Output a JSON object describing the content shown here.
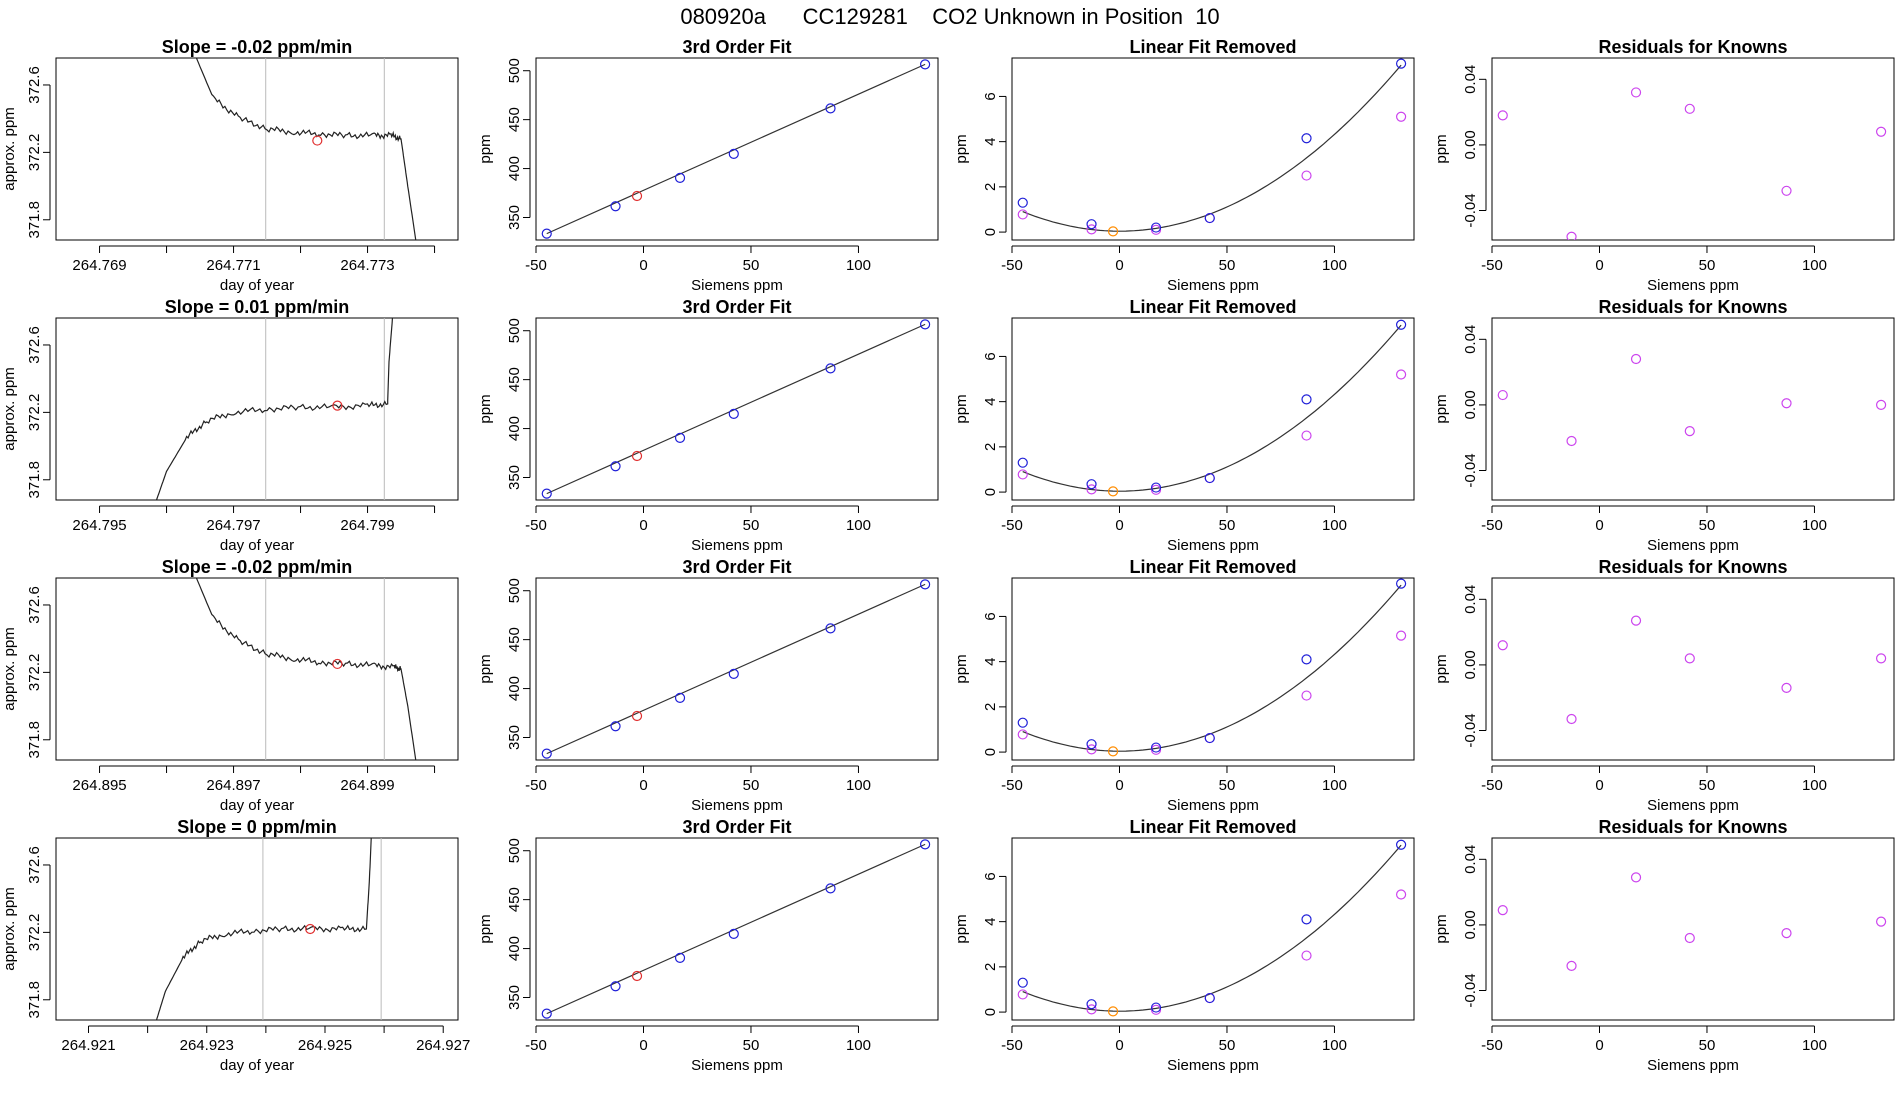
{
  "main_title": "080920a      CC129281    CO2 Unknown in Position  10",
  "colors": {
    "known": "#1f1fd8",
    "unknown": "#e03030",
    "zero": "#ff8c00",
    "magenta": "#cc44ee",
    "line": "#333333",
    "vline": "#bbbbbb"
  },
  "chart_data": [
    {
      "type": "line",
      "row": 0,
      "title": "Slope =  -0.02  ppm/min",
      "xlabel": "day of year",
      "ylabel": "approx. ppm",
      "xlim": [
        264.76835,
        264.77435
      ],
      "ylim": [
        371.68,
        372.76
      ],
      "xticks": [
        264.769,
        264.771,
        264.773
      ],
      "xtick_labels": [
        "264.769",
        "264.771",
        "264.773"
      ],
      "xtick_minor": [
        264.77,
        264.772,
        264.774
      ],
      "yticks": [
        371.8,
        372.2,
        372.6
      ],
      "ytick_labels": [
        "371.8",
        "372.2",
        "372.6"
      ],
      "vlines": [
        264.77148,
        264.77325
      ],
      "trace": {
        "x": [
          264.77035,
          264.7707,
          264.7711,
          264.7715,
          264.7719,
          264.7723,
          264.7727,
          264.7731,
          264.77335,
          264.7735,
          264.7736,
          264.77375
        ],
        "y": [
          372.85,
          372.52,
          372.4,
          372.34,
          372.32,
          372.31,
          372.3,
          372.3,
          372.3,
          372.28,
          372.0,
          371.6
        ]
      },
      "marker": {
        "x": 264.77225,
        "y": 372.27
      }
    },
    {
      "type": "scatter",
      "row": 0,
      "title": "3rd Order Fit",
      "xlabel": "Siemens ppm",
      "ylabel": "ppm",
      "xlim": [
        -50,
        137
      ],
      "ylim": [
        327,
        513
      ],
      "xticks": [
        -50,
        0,
        50,
        100
      ],
      "xtick_labels": [
        "-50",
        "0",
        "50",
        "100"
      ],
      "yticks": [
        350,
        400,
        450,
        500
      ],
      "ytick_labels": [
        "350",
        "400",
        "450",
        "500"
      ],
      "fit": {
        "x": [
          -45,
          131
        ],
        "y": [
          333.5,
          506.5
        ]
      },
      "known": {
        "x": [
          -45,
          -13,
          17,
          42,
          87,
          131
        ],
        "y": [
          333.5,
          361.5,
          390.5,
          415,
          461.5,
          506.5
        ]
      },
      "unknown": {
        "x": [
          -3
        ],
        "y": [
          372
        ]
      }
    },
    {
      "type": "scatter",
      "row": 0,
      "title": "Linear Fit Removed",
      "xlabel": "Siemens ppm",
      "ylabel": "ppm",
      "xlim": [
        -50,
        137
      ],
      "ylim": [
        -0.35,
        7.7
      ],
      "xticks": [
        -50,
        0,
        50,
        100
      ],
      "xtick_labels": [
        "-50",
        "0",
        "50",
        "100"
      ],
      "yticks": [
        0,
        2,
        4,
        6
      ],
      "ytick_labels": [
        "0",
        "2",
        "4",
        "6"
      ],
      "curve": {
        "c0": 0.04,
        "c1": 0.0,
        "c2": 0.000428
      },
      "known": {
        "x": [
          -45,
          -13,
          17,
          42,
          87,
          131
        ],
        "y": [
          1.3,
          0.35,
          0.2,
          0.62,
          4.15,
          7.45
        ]
      },
      "magenta": {
        "x": [
          -45,
          -13,
          17,
          42,
          87,
          131
        ],
        "y": [
          0.78,
          0.12,
          0.1,
          0.62,
          2.5,
          5.1
        ]
      },
      "zero": {
        "x": [
          -3
        ],
        "y": [
          0.03
        ]
      }
    },
    {
      "type": "scatter",
      "row": 0,
      "title": "Residuals for Knowns",
      "xlabel": "Siemens ppm",
      "ylabel": "ppm",
      "xlim": [
        -50,
        137
      ],
      "ylim": [
        -0.058,
        0.053
      ],
      "xticks": [
        -50,
        0,
        50,
        100
      ],
      "xtick_labels": [
        "-50",
        "0",
        "50",
        "100"
      ],
      "yticks": [
        -0.04,
        0.0,
        0.04
      ],
      "ytick_labels": [
        "-0.04",
        "0.00",
        "0.04"
      ],
      "magenta": {
        "x": [
          -45,
          -13,
          17,
          42,
          87,
          131
        ],
        "y": [
          0.018,
          -0.056,
          0.032,
          0.022,
          -0.028,
          0.008
        ]
      }
    },
    {
      "type": "line",
      "row": 1,
      "title": "Slope =  0.01  ppm/min",
      "xlabel": "day of year",
      "ylabel": "approx. ppm",
      "xlim": [
        264.79435,
        264.80035
      ],
      "ylim": [
        371.68,
        372.76
      ],
      "xticks": [
        264.795,
        264.797,
        264.799
      ],
      "xtick_labels": [
        "264.795",
        "264.797",
        "264.799"
      ],
      "xtick_minor": [
        264.796,
        264.798,
        264.8
      ],
      "yticks": [
        371.8,
        372.2,
        372.6
      ],
      "ytick_labels": [
        "371.8",
        "372.2",
        "372.6"
      ],
      "vlines": [
        264.79748,
        264.79925
      ],
      "trace": {
        "x": [
          264.79585,
          264.796,
          264.7963,
          264.7966,
          264.797,
          264.7975,
          264.798,
          264.7985,
          264.799,
          264.7993,
          264.79932,
          264.7994
        ],
        "y": [
          371.68,
          371.85,
          372.05,
          372.15,
          372.2,
          372.22,
          372.23,
          372.23,
          372.24,
          372.25,
          372.5,
          372.9
        ]
      },
      "marker": {
        "x": 264.79855,
        "y": 372.24
      }
    },
    {
      "type": "scatter",
      "row": 1,
      "title": "3rd Order Fit",
      "xlabel": "Siemens ppm",
      "ylabel": "ppm",
      "xlim": [
        -50,
        137
      ],
      "ylim": [
        327,
        513
      ],
      "xticks": [
        -50,
        0,
        50,
        100
      ],
      "xtick_labels": [
        "-50",
        "0",
        "50",
        "100"
      ],
      "yticks": [
        350,
        400,
        450,
        500
      ],
      "ytick_labels": [
        "350",
        "400",
        "450",
        "500"
      ],
      "fit": {
        "x": [
          -45,
          131
        ],
        "y": [
          333.5,
          506.5
        ]
      },
      "known": {
        "x": [
          -45,
          -13,
          17,
          42,
          87,
          131
        ],
        "y": [
          333.5,
          361.5,
          390.5,
          415,
          461.5,
          506.5
        ]
      },
      "unknown": {
        "x": [
          -3
        ],
        "y": [
          372
        ]
      }
    },
    {
      "type": "scatter",
      "row": 1,
      "title": "Linear Fit Removed",
      "xlabel": "Siemens ppm",
      "ylabel": "ppm",
      "xlim": [
        -50,
        137
      ],
      "ylim": [
        -0.35,
        7.7
      ],
      "xticks": [
        -50,
        0,
        50,
        100
      ],
      "xtick_labels": [
        "-50",
        "0",
        "50",
        "100"
      ],
      "yticks": [
        0,
        2,
        4,
        6
      ],
      "ytick_labels": [
        "0",
        "2",
        "4",
        "6"
      ],
      "curve": {
        "c0": 0.04,
        "c1": 0.0,
        "c2": 0.000428
      },
      "known": {
        "x": [
          -45,
          -13,
          17,
          42,
          87,
          131
        ],
        "y": [
          1.3,
          0.35,
          0.2,
          0.62,
          4.1,
          7.4
        ]
      },
      "magenta": {
        "x": [
          -45,
          -13,
          17,
          42,
          87,
          131
        ],
        "y": [
          0.78,
          0.12,
          0.1,
          0.62,
          2.5,
          5.2
        ]
      },
      "zero": {
        "x": [
          -3
        ],
        "y": [
          0.03
        ]
      }
    },
    {
      "type": "scatter",
      "row": 1,
      "title": "Residuals for Knowns",
      "xlabel": "Siemens ppm",
      "ylabel": "ppm",
      "xlim": [
        -50,
        137
      ],
      "ylim": [
        -0.058,
        0.053
      ],
      "xticks": [
        -50,
        0,
        50,
        100
      ],
      "xtick_labels": [
        "-50",
        "0",
        "50",
        "100"
      ],
      "yticks": [
        -0.04,
        0.0,
        0.04
      ],
      "ytick_labels": [
        "-0.04",
        "0.00",
        "0.04"
      ],
      "magenta": {
        "x": [
          -45,
          -13,
          17,
          42,
          87,
          131
        ],
        "y": [
          0.006,
          -0.022,
          0.028,
          -0.016,
          0.001,
          0.0
        ]
      }
    },
    {
      "type": "line",
      "row": 2,
      "title": "Slope =  -0.02  ppm/min",
      "xlabel": "day of year",
      "ylabel": "approx. ppm",
      "xlim": [
        264.89435,
        264.90035
      ],
      "ylim": [
        371.68,
        372.76
      ],
      "xticks": [
        264.895,
        264.897,
        264.899
      ],
      "xtick_labels": [
        "264.895",
        "264.897",
        "264.899"
      ],
      "xtick_minor": [
        264.896,
        264.898,
        264.9
      ],
      "yticks": [
        371.8,
        372.2,
        372.6
      ],
      "ytick_labels": [
        "371.8",
        "372.2",
        "372.6"
      ],
      "vlines": [
        264.89748,
        264.89925
      ],
      "trace": {
        "x": [
          264.89635,
          264.8967,
          264.8971,
          264.8975,
          264.8979,
          264.8983,
          264.8987,
          264.8991,
          264.8994,
          264.8995,
          264.8996,
          264.89975
        ],
        "y": [
          372.85,
          372.52,
          372.38,
          372.31,
          372.28,
          372.26,
          372.25,
          372.24,
          372.23,
          372.22,
          372.0,
          371.6
        ]
      },
      "marker": {
        "x": 264.89855,
        "y": 372.25
      }
    },
    {
      "type": "scatter",
      "row": 2,
      "title": "3rd Order Fit",
      "xlabel": "Siemens ppm",
      "ylabel": "ppm",
      "xlim": [
        -50,
        137
      ],
      "ylim": [
        327,
        513
      ],
      "xticks": [
        -50,
        0,
        50,
        100
      ],
      "xtick_labels": [
        "-50",
        "0",
        "50",
        "100"
      ],
      "yticks": [
        350,
        400,
        450,
        500
      ],
      "ytick_labels": [
        "350",
        "400",
        "450",
        "500"
      ],
      "fit": {
        "x": [
          -45,
          131
        ],
        "y": [
          333.5,
          506.5
        ]
      },
      "known": {
        "x": [
          -45,
          -13,
          17,
          42,
          87,
          131
        ],
        "y": [
          333.5,
          361.5,
          390.5,
          415,
          461.5,
          506.5
        ]
      },
      "unknown": {
        "x": [
          -3
        ],
        "y": [
          372
        ]
      }
    },
    {
      "type": "scatter",
      "row": 2,
      "title": "Linear Fit Removed",
      "xlabel": "Siemens ppm",
      "ylabel": "ppm",
      "xlim": [
        -50,
        137
      ],
      "ylim": [
        -0.35,
        7.7
      ],
      "xticks": [
        -50,
        0,
        50,
        100
      ],
      "xtick_labels": [
        "-50",
        "0",
        "50",
        "100"
      ],
      "yticks": [
        0,
        2,
        4,
        6
      ],
      "ytick_labels": [
        "0",
        "2",
        "4",
        "6"
      ],
      "curve": {
        "c0": 0.04,
        "c1": 0.0,
        "c2": 0.000428
      },
      "known": {
        "x": [
          -45,
          -13,
          17,
          42,
          87,
          131
        ],
        "y": [
          1.3,
          0.35,
          0.2,
          0.62,
          4.1,
          7.45
        ]
      },
      "magenta": {
        "x": [
          -45,
          -13,
          17,
          42,
          87,
          131
        ],
        "y": [
          0.78,
          0.12,
          0.1,
          0.62,
          2.5,
          5.15
        ]
      },
      "zero": {
        "x": [
          -3
        ],
        "y": [
          0.03
        ]
      }
    },
    {
      "type": "scatter",
      "row": 2,
      "title": "Residuals for Knowns",
      "xlabel": "Siemens ppm",
      "ylabel": "ppm",
      "xlim": [
        -50,
        137
      ],
      "ylim": [
        -0.058,
        0.053
      ],
      "xticks": [
        -50,
        0,
        50,
        100
      ],
      "xtick_labels": [
        "-50",
        "0",
        "50",
        "100"
      ],
      "yticks": [
        -0.04,
        0.0,
        0.04
      ],
      "ytick_labels": [
        "-0.04",
        "0.00",
        "0.04"
      ],
      "magenta": {
        "x": [
          -45,
          -13,
          17,
          42,
          87,
          131
        ],
        "y": [
          0.012,
          -0.033,
          0.027,
          0.004,
          -0.014,
          0.004
        ]
      }
    },
    {
      "type": "line",
      "row": 3,
      "title": "Slope =  0  ppm/min",
      "xlabel": "day of year",
      "ylabel": "approx. ppm",
      "xlim": [
        264.92045,
        264.92725
      ],
      "ylim": [
        371.68,
        372.76
      ],
      "xticks": [
        264.921,
        264.923,
        264.925,
        264.927
      ],
      "xtick_labels": [
        "264.921",
        "264.923",
        "264.925",
        "264.927"
      ],
      "xtick_minor": [
        264.922,
        264.924,
        264.926
      ],
      "yticks": [
        371.8,
        372.2,
        372.6
      ],
      "ytick_labels": [
        "371.8",
        "372.2",
        "372.6"
      ],
      "vlines": [
        264.92395,
        264.92595
      ],
      "trace": {
        "x": [
          264.92215,
          264.9223,
          264.9226,
          264.9229,
          264.9233,
          264.9238,
          264.9243,
          264.9248,
          264.9253,
          264.9257,
          264.92575,
          264.9258
        ],
        "y": [
          371.68,
          371.85,
          372.05,
          372.15,
          372.19,
          372.21,
          372.22,
          372.22,
          372.22,
          372.22,
          372.5,
          372.9
        ]
      },
      "marker": {
        "x": 264.92475,
        "y": 372.22
      }
    },
    {
      "type": "scatter",
      "row": 3,
      "title": "3rd Order Fit",
      "xlabel": "Siemens ppm",
      "ylabel": "ppm",
      "xlim": [
        -50,
        137
      ],
      "ylim": [
        327,
        513
      ],
      "xticks": [
        -50,
        0,
        50,
        100
      ],
      "xtick_labels": [
        "-50",
        "0",
        "50",
        "100"
      ],
      "yticks": [
        350,
        400,
        450,
        500
      ],
      "ytick_labels": [
        "350",
        "400",
        "450",
        "500"
      ],
      "fit": {
        "x": [
          -45,
          131
        ],
        "y": [
          333.5,
          506.5
        ]
      },
      "known": {
        "x": [
          -45,
          -13,
          17,
          42,
          87,
          131
        ],
        "y": [
          333.5,
          361.5,
          390.5,
          415,
          461.5,
          506.5
        ]
      },
      "unknown": {
        "x": [
          -3
        ],
        "y": [
          372
        ]
      }
    },
    {
      "type": "scatter",
      "row": 3,
      "title": "Linear Fit Removed",
      "xlabel": "Siemens ppm",
      "ylabel": "ppm",
      "xlim": [
        -50,
        137
      ],
      "ylim": [
        -0.35,
        7.7
      ],
      "xticks": [
        -50,
        0,
        50,
        100
      ],
      "xtick_labels": [
        "-50",
        "0",
        "50",
        "100"
      ],
      "yticks": [
        0,
        2,
        4,
        6
      ],
      "ytick_labels": [
        "0",
        "2",
        "4",
        "6"
      ],
      "curve": {
        "c0": 0.04,
        "c1": 0.0,
        "c2": 0.000428
      },
      "known": {
        "x": [
          -45,
          -13,
          17,
          42,
          87,
          131
        ],
        "y": [
          1.3,
          0.35,
          0.2,
          0.62,
          4.1,
          7.4
        ]
      },
      "magenta": {
        "x": [
          -45,
          -13,
          17,
          42,
          87,
          131
        ],
        "y": [
          0.78,
          0.12,
          0.1,
          0.62,
          2.5,
          5.2
        ]
      },
      "zero": {
        "x": [
          -3
        ],
        "y": [
          0.03
        ]
      }
    },
    {
      "type": "scatter",
      "row": 3,
      "title": "Residuals for Knowns",
      "xlabel": "Siemens ppm",
      "ylabel": "ppm",
      "xlim": [
        -50,
        137
      ],
      "ylim": [
        -0.058,
        0.053
      ],
      "xticks": [
        -50,
        0,
        50,
        100
      ],
      "xtick_labels": [
        "-50",
        "0",
        "50",
        "100"
      ],
      "yticks": [
        -0.04,
        0.0,
        0.04
      ],
      "ytick_labels": [
        "-0.04",
        "0.00",
        "0.04"
      ],
      "magenta": {
        "x": [
          -45,
          -13,
          17,
          42,
          87,
          131
        ],
        "y": [
          0.009,
          -0.025,
          0.029,
          -0.008,
          -0.005,
          0.002
        ]
      }
    }
  ]
}
